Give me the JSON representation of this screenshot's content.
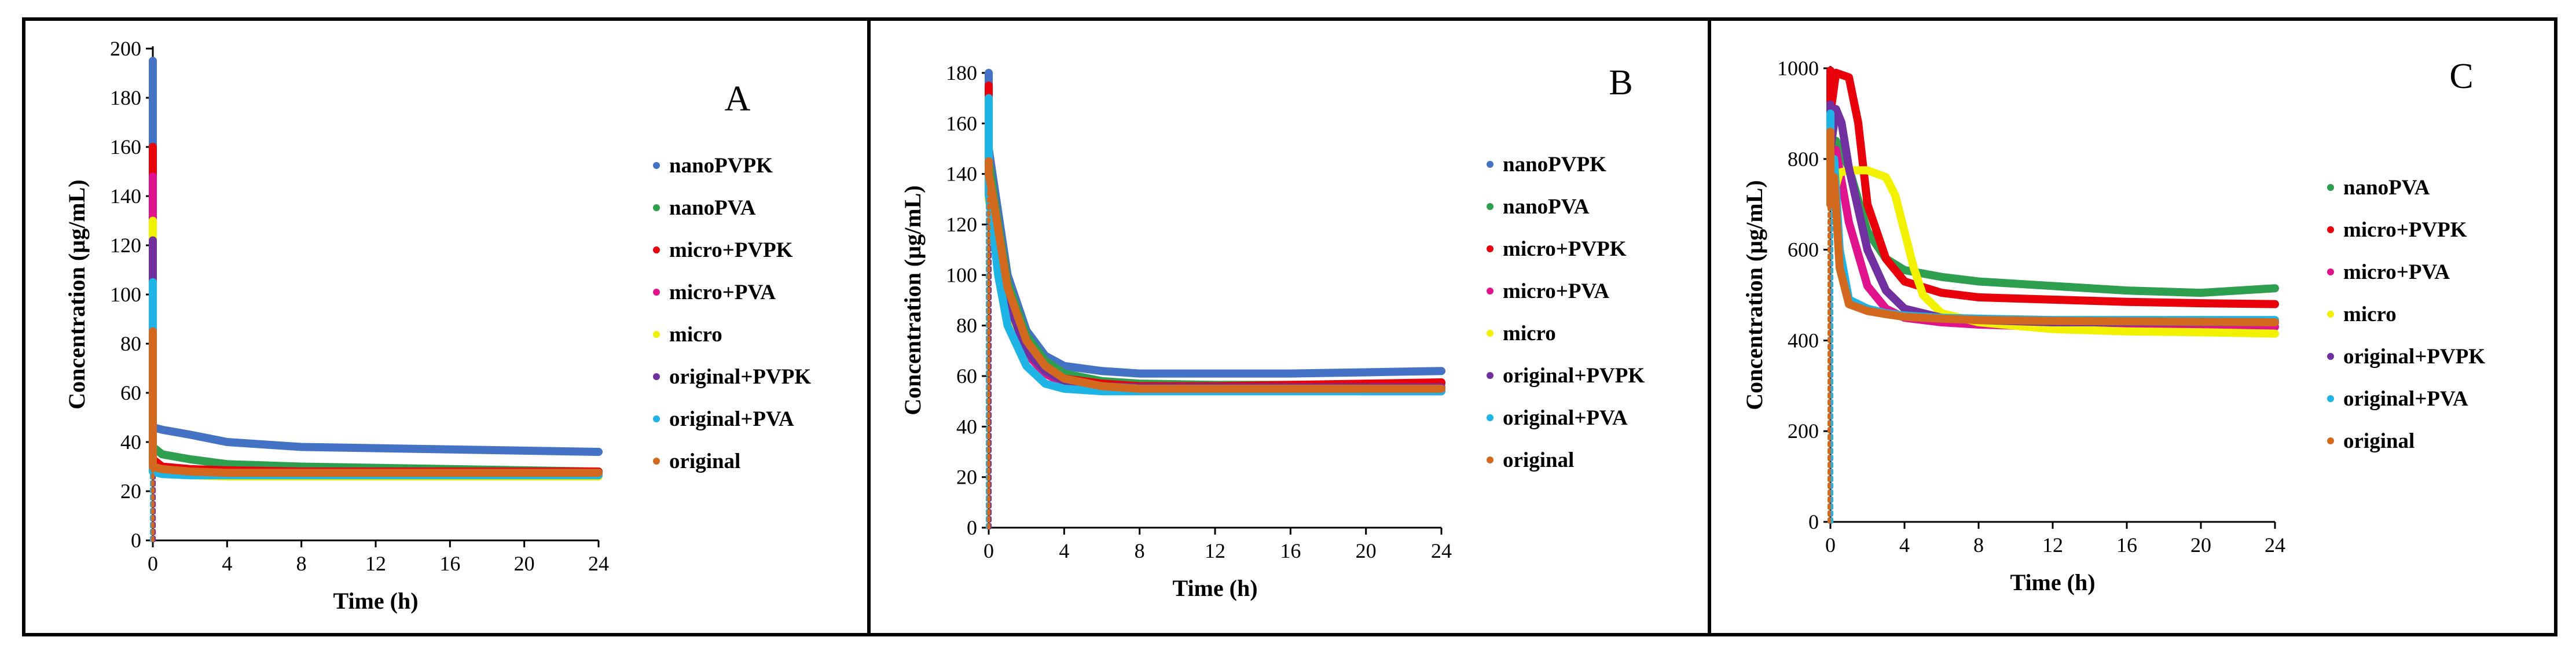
{
  "chart_data": [
    {
      "type": "scatter",
      "panel_label": "A",
      "xlabel": "Time  (h)",
      "ylabel": "Concentration  (µg/mL)",
      "xlim": [
        0,
        24
      ],
      "ylim": [
        0,
        200
      ],
      "xticks": [
        0,
        4,
        8,
        12,
        16,
        20,
        24
      ],
      "yticks": [
        0,
        20,
        40,
        60,
        80,
        100,
        120,
        140,
        160,
        180,
        200
      ],
      "legend_position": "right",
      "series": [
        {
          "name": "nanoPVPK",
          "color": "#4472C4",
          "peak": 195,
          "x": [
            0,
            0.5,
            2,
            4,
            8,
            12,
            16,
            20,
            24
          ],
          "y": [
            46,
            45,
            43,
            40,
            38,
            37.5,
            37,
            36.5,
            36
          ]
        },
        {
          "name": "nanoPVA",
          "color": "#2E9E4F",
          "peak": 155,
          "x": [
            0,
            0.5,
            2,
            4,
            8,
            12,
            16,
            20,
            24
          ],
          "y": [
            38,
            35,
            33,
            31,
            30,
            29.5,
            29,
            28.5,
            28
          ]
        },
        {
          "name": "micro+PVPK",
          "color": "#E8000B",
          "peak": 160,
          "x": [
            0,
            0.5,
            2,
            4,
            8,
            12,
            16,
            20,
            24
          ],
          "y": [
            33,
            30,
            29,
            28.5,
            28,
            28,
            28,
            28,
            28
          ]
        },
        {
          "name": "micro+PVA",
          "color": "#E0138C",
          "peak": 148,
          "x": [
            0,
            0.5,
            2,
            4,
            8,
            12,
            16,
            20,
            24
          ],
          "y": [
            30,
            28,
            27.5,
            27,
            27,
            27,
            27,
            27,
            27
          ]
        },
        {
          "name": "micro",
          "color": "#F2F200",
          "peak": 130,
          "x": [
            0,
            0.5,
            2,
            4,
            8,
            12,
            16,
            20,
            24
          ],
          "y": [
            28,
            27,
            26.5,
            26,
            26,
            26,
            26,
            26,
            26
          ]
        },
        {
          "name": "original+PVPK",
          "color": "#7030A0",
          "peak": 122,
          "x": [
            0,
            0.5,
            2,
            4,
            8,
            12,
            16,
            20,
            24
          ],
          "y": [
            29,
            28,
            27.5,
            27.5,
            27.5,
            27.5,
            27.5,
            27.5,
            27.5
          ]
        },
        {
          "name": "original+PVA",
          "color": "#1FB4E6",
          "peak": 105,
          "x": [
            0,
            0.5,
            2,
            4,
            8,
            12,
            16,
            20,
            24
          ],
          "y": [
            28,
            27,
            26.5,
            26.5,
            26.5,
            26.5,
            26.5,
            26.5,
            26.5
          ]
        },
        {
          "name": "original",
          "color": "#D2691E",
          "peak": 85,
          "x": [
            0,
            0.5,
            2,
            4,
            8,
            12,
            16,
            20,
            24
          ],
          "y": [
            30,
            29,
            28,
            27.5,
            27.5,
            27.5,
            27.5,
            27.5,
            27.5
          ]
        }
      ]
    },
    {
      "type": "scatter",
      "panel_label": "B",
      "xlabel": "Time  (h)",
      "ylabel": "Concentration  (µg/mL)",
      "xlim": [
        0,
        24
      ],
      "ylim": [
        0,
        180
      ],
      "xticks": [
        0,
        4,
        8,
        12,
        16,
        20,
        24
      ],
      "yticks": [
        0,
        20,
        40,
        60,
        80,
        100,
        120,
        140,
        160,
        180
      ],
      "legend_position": "right",
      "series": [
        {
          "name": "nanoPVPK",
          "color": "#4472C4",
          "peak": 180,
          "x": [
            0,
            0.2,
            0.5,
            1,
            2,
            3,
            4,
            6,
            8,
            12,
            16,
            20,
            24
          ],
          "y": [
            150,
            140,
            125,
            100,
            78,
            68,
            64,
            62,
            61,
            61,
            61,
            61.5,
            62
          ]
        },
        {
          "name": "nanoPVA",
          "color": "#2E9E4F",
          "peak": 155,
          "x": [
            0,
            0.2,
            0.5,
            1,
            2,
            3,
            4,
            6,
            8,
            12,
            16,
            20,
            24
          ],
          "y": [
            145,
            135,
            120,
            97,
            76,
            66,
            61,
            58,
            57,
            56.5,
            56.5,
            56.5,
            57
          ]
        },
        {
          "name": "micro+PVPK",
          "color": "#E8000B",
          "peak": 175,
          "x": [
            0,
            0.2,
            0.5,
            1,
            2,
            3,
            4,
            6,
            8,
            12,
            16,
            20,
            24
          ],
          "y": [
            140,
            130,
            115,
            92,
            72,
            63,
            59,
            57,
            56,
            56,
            56.5,
            57,
            57.5
          ]
        },
        {
          "name": "micro+PVA",
          "color": "#E0138C",
          "peak": 165,
          "x": [
            0,
            0.2,
            0.5,
            1,
            2,
            3,
            4,
            6,
            8,
            12,
            16,
            20,
            24
          ],
          "y": [
            135,
            125,
            110,
            88,
            69,
            61,
            57,
            55,
            54.5,
            54.5,
            54.5,
            54,
            54
          ]
        },
        {
          "name": "micro",
          "color": "#F2F200",
          "peak": 150,
          "x": [
            0,
            0.2,
            0.5,
            1,
            2,
            3,
            4,
            6,
            8,
            12,
            16,
            20,
            24
          ],
          "y": [
            130,
            122,
            108,
            88,
            70,
            62,
            58,
            56,
            55,
            55,
            55,
            55,
            55
          ]
        },
        {
          "name": "original+PVPK",
          "color": "#7030A0",
          "peak": 155,
          "x": [
            0,
            0.2,
            0.5,
            1,
            2,
            3,
            4,
            6,
            8,
            12,
            16,
            20,
            24
          ],
          "y": [
            138,
            128,
            112,
            90,
            70,
            62,
            58,
            56,
            55.5,
            55.5,
            55.5,
            55.5,
            55.5
          ]
        },
        {
          "name": "original+PVA",
          "color": "#1FB4E6",
          "peak": 170,
          "x": [
            0,
            0.2,
            0.5,
            1,
            2,
            3,
            4,
            6,
            8,
            12,
            16,
            20,
            24
          ],
          "y": [
            132,
            120,
            100,
            80,
            64,
            57,
            55,
            54,
            54,
            54,
            54,
            54,
            54
          ]
        },
        {
          "name": "original",
          "color": "#D2691E",
          "peak": 145,
          "x": [
            0,
            0.2,
            0.5,
            1,
            2,
            3,
            4,
            6,
            8,
            12,
            16,
            20,
            24
          ],
          "y": [
            140,
            132,
            118,
            95,
            74,
            64,
            59,
            56,
            55,
            55,
            55,
            55,
            55
          ]
        }
      ]
    },
    {
      "type": "scatter",
      "panel_label": "C",
      "xlabel": "Time  (h)",
      "ylabel": "Concentration  (µg/mL)",
      "xlim": [
        0,
        24
      ],
      "ylim": [
        0,
        1000
      ],
      "xticks": [
        0,
        4,
        8,
        12,
        16,
        20,
        24
      ],
      "yticks": [
        0,
        200,
        400,
        600,
        800,
        1000
      ],
      "legend_position": "right",
      "series": [
        {
          "name": "nanoPVA",
          "color": "#2E9E4F",
          "peak": 850,
          "x": [
            0,
            0.3,
            1,
            2,
            3,
            4,
            6,
            8,
            12,
            16,
            20,
            24
          ],
          "y": [
            760,
            840,
            780,
            640,
            580,
            555,
            540,
            530,
            520,
            510,
            505,
            515
          ]
        },
        {
          "name": "micro+PVPK",
          "color": "#E8000B",
          "peak": 995,
          "x": [
            0,
            0.3,
            1,
            1.5,
            2,
            3,
            4,
            6,
            8,
            12,
            16,
            20,
            24
          ],
          "y": [
            900,
            990,
            980,
            880,
            700,
            580,
            530,
            505,
            495,
            490,
            485,
            482,
            480
          ]
        },
        {
          "name": "micro+PVA",
          "color": "#E0138C",
          "peak": 830,
          "x": [
            0,
            0.3,
            1,
            2,
            3,
            4,
            6,
            8,
            12,
            16,
            20,
            24
          ],
          "y": [
            740,
            820,
            660,
            520,
            470,
            450,
            440,
            435,
            430,
            430,
            430,
            430
          ]
        },
        {
          "name": "micro",
          "color": "#F2F200",
          "peak": 780,
          "x": [
            0,
            0.5,
            1,
            2,
            3,
            3.5,
            4,
            4.5,
            5,
            6,
            8,
            12,
            16,
            20,
            24
          ],
          "y": [
            700,
            770,
            775,
            775,
            760,
            720,
            640,
            560,
            500,
            460,
            440,
            425,
            420,
            418,
            415
          ]
        },
        {
          "name": "original+PVPK",
          "color": "#7030A0",
          "peak": 920,
          "x": [
            0,
            0.3,
            0.6,
            1,
            2,
            3,
            4,
            6,
            8,
            12,
            16,
            20,
            24
          ],
          "y": [
            820,
            910,
            880,
            780,
            600,
            510,
            470,
            450,
            445,
            440,
            440,
            440,
            440
          ]
        },
        {
          "name": "original+PVA",
          "color": "#1FB4E6",
          "peak": 900,
          "x": [
            0,
            0.2,
            0.5,
            1,
            2,
            3,
            4,
            6,
            8,
            12,
            16,
            20,
            24
          ],
          "y": [
            720,
            800,
            600,
            490,
            470,
            460,
            455,
            450,
            448,
            445,
            445,
            445,
            445
          ]
        },
        {
          "name": "original",
          "color": "#D2691E",
          "peak": 860,
          "x": [
            0,
            0.2,
            0.5,
            1,
            2,
            3,
            4,
            6,
            8,
            12,
            16,
            20,
            24
          ],
          "y": [
            700,
            760,
            560,
            480,
            465,
            458,
            452,
            448,
            445,
            443,
            442,
            441,
            440
          ]
        }
      ]
    }
  ]
}
